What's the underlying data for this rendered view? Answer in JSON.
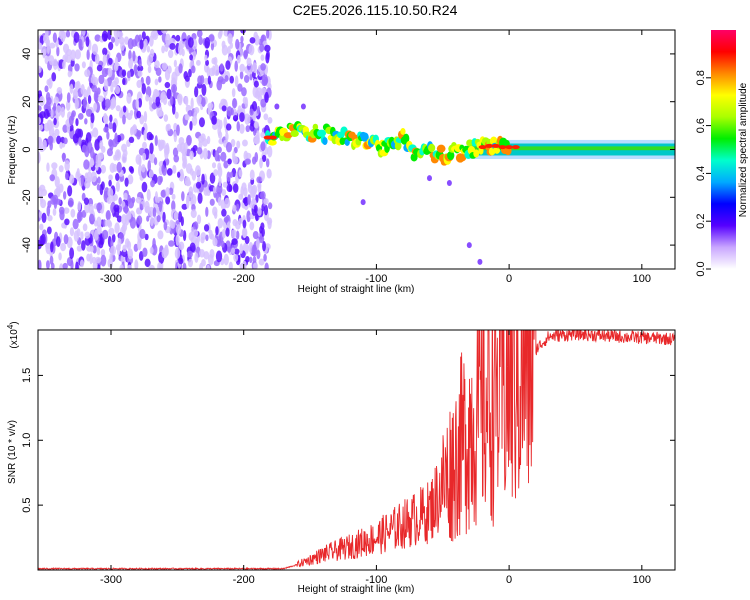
{
  "title": "C2E5.2026.115.10.50.R24",
  "chart_data": [
    {
      "type": "heatmap",
      "xlabel": "Height of straight line (km)",
      "ylabel": "Frequency (Hz)",
      "xlim": [
        -355,
        125
      ],
      "ylim": [
        -50,
        50
      ],
      "x_ticks": [
        -300,
        -200,
        -100,
        0,
        100
      ],
      "y_ticks": [
        -40,
        -20,
        0,
        20,
        40
      ],
      "noise_region_x": [
        -355,
        -180
      ],
      "ridge": {
        "x": [
          -182,
          -170,
          -150,
          -130,
          -110,
          -95,
          -80,
          -70,
          -60,
          -50,
          -40,
          -30,
          -20,
          -10,
          0,
          20,
          60,
          125
        ],
        "y": [
          5,
          7,
          7,
          6,
          4,
          0,
          5,
          -2,
          0,
          -3,
          -1,
          0,
          1,
          2,
          1,
          1,
          1,
          1
        ]
      },
      "colorbar": {
        "label": "Normalized spectral amplitude",
        "range": [
          0.0,
          1.0
        ],
        "ticks": [
          "0.0",
          "0.2",
          "0.4",
          "0.6",
          "0.8"
        ],
        "colors": [
          "#ffffff",
          "#c9a6ff",
          "#5500ff",
          "#0000ff",
          "#00aaff",
          "#00ffcc",
          "#00ee00",
          "#aaff00",
          "#ffff00",
          "#ff8800",
          "#ff0000",
          "#ff0066"
        ]
      }
    },
    {
      "type": "line",
      "xlabel": "Height of straight line (km)",
      "ylabel": "SNR (10 * v/v)",
      "multiplier": "(x10",
      "multiplier_exp": "4",
      "xlim": [
        -355,
        125
      ],
      "ylim": [
        0,
        1.85
      ],
      "x_ticks": [
        -300,
        -200,
        -100,
        0,
        100
      ],
      "y_ticks": [
        "0.5",
        "1.0",
        "1.5"
      ],
      "series": [
        {
          "name": "SNR",
          "color": "#e8282a",
          "x": [
            -355,
            -170,
            -160,
            -140,
            -120,
            -100,
            -80,
            -60,
            -45,
            -30,
            -20,
            -10,
            0,
            10,
            20,
            30,
            50,
            80,
            125
          ],
          "y": [
            0.01,
            0.01,
            0.04,
            0.12,
            0.18,
            0.25,
            0.35,
            0.45,
            0.75,
            1.1,
            1.25,
            1.35,
            1.45,
            1.55,
            1.7,
            1.8,
            1.82,
            1.8,
            1.78
          ]
        }
      ]
    }
  ]
}
